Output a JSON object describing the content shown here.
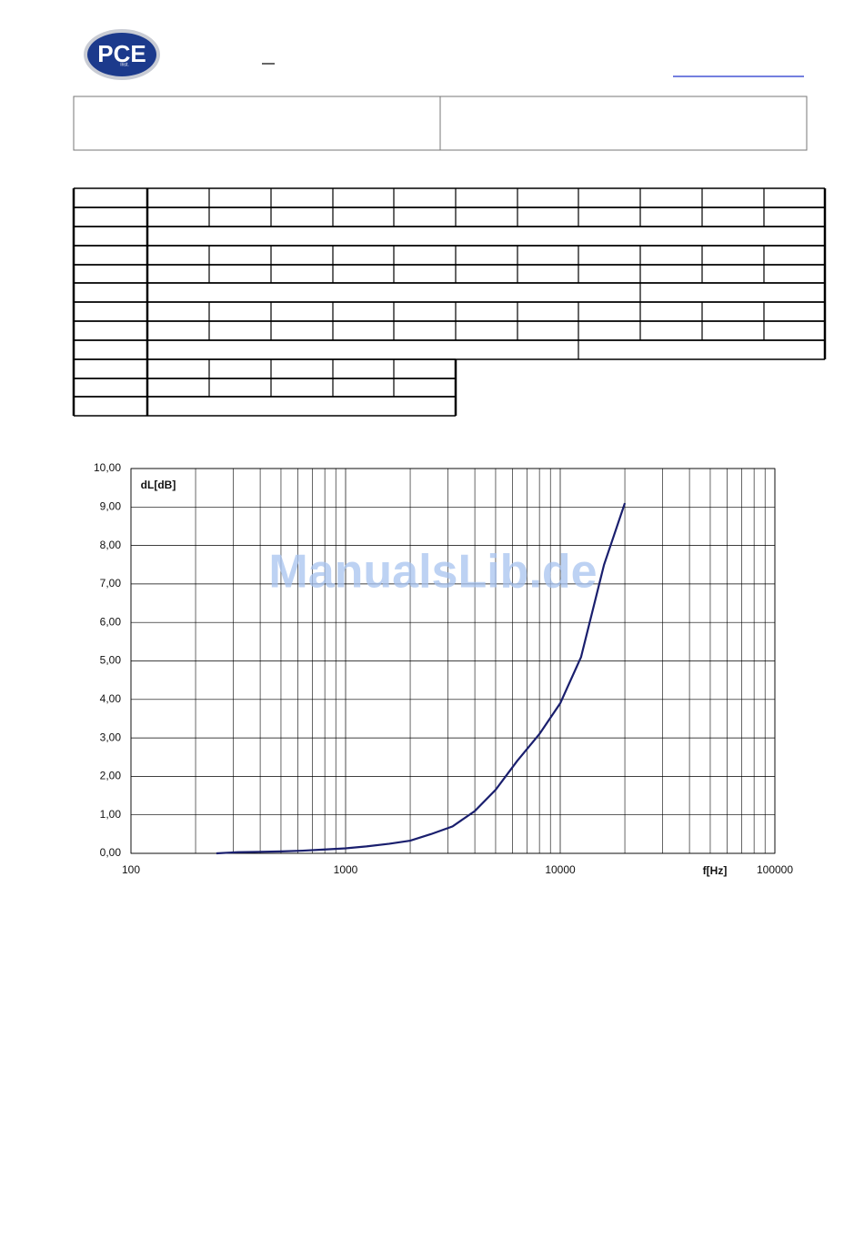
{
  "header": {
    "logo": "PCE",
    "logo_sub": "Inst."
  },
  "chart_data": {
    "type": "line",
    "y_label": "dL[dB]",
    "x_label": "f[Hz]",
    "watermark": "ManualsLib.de",
    "x": [
      250,
      315,
      400,
      500,
      630,
      800,
      1000,
      1250,
      1600,
      2000,
      2500,
      3150,
      4000,
      5000,
      6300,
      8000,
      10000,
      12500,
      16000,
      20000
    ],
    "values": [
      0,
      0.03,
      0.04,
      0.05,
      0.07,
      0.1,
      0.13,
      0.18,
      0.25,
      0.33,
      0.5,
      0.7,
      1.1,
      1.65,
      2.4,
      3.1,
      3.9,
      5.1,
      7.5,
      9.1
    ],
    "color": "#1a1f6e",
    "log_x": true,
    "grid": true,
    "minor_grid": true,
    "xlim": [
      100,
      100000
    ],
    "xticks": [
      100,
      1000,
      10000,
      100000
    ],
    "ylim": [
      0,
      10
    ],
    "yticks": [
      {
        "value": 0,
        "label": "0,00"
      },
      {
        "value": 1,
        "label": "1,00"
      },
      {
        "value": 2,
        "label": "2,00"
      },
      {
        "value": 3,
        "label": "3,00"
      },
      {
        "value": 4,
        "label": "4,00"
      },
      {
        "value": 5,
        "label": "5,00"
      },
      {
        "value": 6,
        "label": "6,00"
      },
      {
        "value": 7,
        "label": "7,00"
      },
      {
        "value": 8,
        "label": "8,00"
      },
      {
        "value": 9,
        "label": "9,00"
      },
      {
        "value": 10,
        "label": "10,00"
      }
    ]
  }
}
